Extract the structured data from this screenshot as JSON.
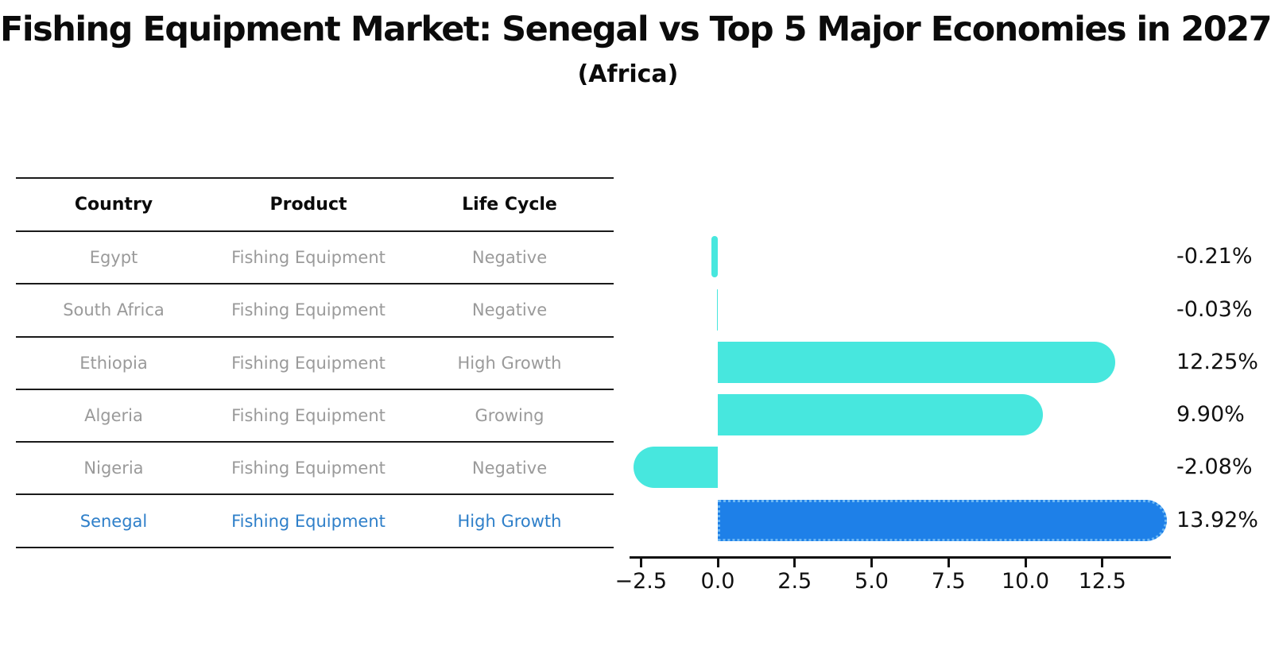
{
  "page": {
    "title": "Fishing Equipment Market: Senegal vs Top 5 Major Economies in 2027",
    "subtitle": "(Africa)"
  },
  "table": {
    "columns": [
      "Country",
      "Product",
      "Life Cycle"
    ],
    "rows": [
      {
        "country": "Egypt",
        "product": "Fishing Equipment",
        "life_cycle": "Negative",
        "highlight": false
      },
      {
        "country": "South Africa",
        "product": "Fishing Equipment",
        "life_cycle": "Negative",
        "highlight": false
      },
      {
        "country": "Ethiopia",
        "product": "Fishing Equipment",
        "life_cycle": "High Growth",
        "highlight": false
      },
      {
        "country": "Algeria",
        "product": "Fishing Equipment",
        "life_cycle": "Growing",
        "highlight": false
      },
      {
        "country": "Nigeria",
        "product": "Fishing Equipment",
        "life_cycle": "Negative",
        "highlight": false
      },
      {
        "country": "Senegal",
        "product": "Fishing Equipment",
        "life_cycle": "High Growth",
        "highlight": true
      }
    ]
  },
  "chart_data": {
    "type": "bar",
    "orientation": "horizontal",
    "title": "Fishing Equipment Market: Senegal vs Top 5 Major Economies in 2027",
    "subtitle": "(Africa)",
    "categories": [
      "Egypt",
      "South Africa",
      "Ethiopia",
      "Algeria",
      "Nigeria",
      "Senegal"
    ],
    "values": [
      -0.21,
      -0.03,
      12.25,
      9.9,
      -2.08,
      13.92
    ],
    "value_labels": [
      "-0.21%",
      "-0.03%",
      "12.25%",
      "9.90%",
      "-2.08%",
      "13.92%"
    ],
    "highlight_category": "Senegal",
    "x_ticks": [
      -2.5,
      0.0,
      2.5,
      5.0,
      7.5,
      10.0,
      12.5
    ],
    "x_tick_labels": [
      "−2.5",
      "0.0",
      "2.5",
      "5.0",
      "7.5",
      "10.0",
      "12.5"
    ],
    "xlim": [
      -2.88,
      14.72
    ],
    "grid": false,
    "legend": "none",
    "colors": {
      "bar_default": "#47e7de",
      "bar_highlight": "#1e80e8",
      "bar_highlight_border": "#6cb7f3",
      "table_row_text": "#9a9a9a",
      "highlight_text": "#2e7fc9",
      "axis_text": "#111111"
    }
  }
}
